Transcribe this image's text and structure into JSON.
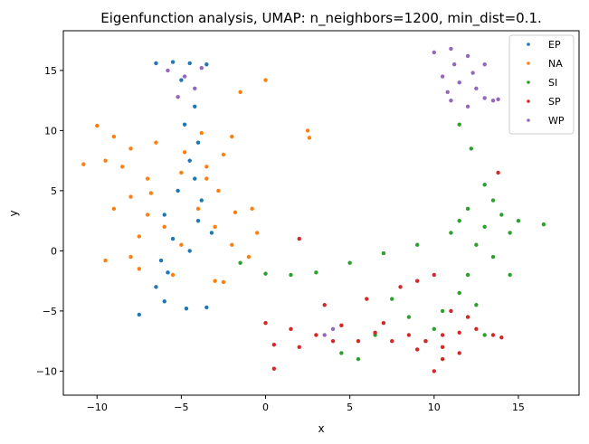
{
  "chart_data": {
    "type": "scatter",
    "title": "Eigenfunction analysis, UMAP: n_neighbors=1200, min_dist=0.1.",
    "xlabel": "x",
    "ylabel": "y",
    "xlim": [
      -12,
      18.6
    ],
    "ylim": [
      -12,
      18.3
    ],
    "xticks": [
      -10,
      -5,
      0,
      5,
      10,
      15
    ],
    "yticks": [
      -10,
      -5,
      0,
      5,
      10,
      15
    ],
    "tick_labels": {
      "x": [
        "−10",
        "−5",
        "0",
        "5",
        "10",
        "15"
      ],
      "y": [
        "−10",
        "−5",
        "0",
        "5",
        "10",
        "15"
      ]
    },
    "grid": false,
    "legend_position": "top-right",
    "series": [
      {
        "name": "EP",
        "color": "#1f77b4",
        "points": [
          [
            -6.5,
            15.6
          ],
          [
            -5.5,
            15.7
          ],
          [
            -4.5,
            15.6
          ],
          [
            -3.5,
            15.5
          ],
          [
            -5.0,
            14.2
          ],
          [
            -4.2,
            12.0
          ],
          [
            -4.8,
            10.5
          ],
          [
            -4.0,
            9.0
          ],
          [
            -4.5,
            7.5
          ],
          [
            -4.2,
            6.0
          ],
          [
            -5.2,
            5.0
          ],
          [
            -3.8,
            4.2
          ],
          [
            -6.0,
            3.0
          ],
          [
            -4.0,
            2.5
          ],
          [
            -5.5,
            1.0
          ],
          [
            -4.5,
            0.0
          ],
          [
            -6.2,
            -0.8
          ],
          [
            -5.8,
            -1.8
          ],
          [
            -6.5,
            -3.0
          ],
          [
            -6.0,
            -4.2
          ],
          [
            -7.5,
            -5.3
          ],
          [
            -4.7,
            -4.8
          ],
          [
            -3.5,
            -4.7
          ],
          [
            -3.2,
            1.5
          ]
        ]
      },
      {
        "name": "NA",
        "color": "#ff7f0e",
        "points": [
          [
            -10.0,
            10.4
          ],
          [
            -9.0,
            9.5
          ],
          [
            -8.0,
            8.5
          ],
          [
            -10.8,
            7.2
          ],
          [
            -9.5,
            7.5
          ],
          [
            -8.5,
            7.0
          ],
          [
            -7.0,
            6.0
          ],
          [
            -5.0,
            6.5
          ],
          [
            -3.5,
            7.0
          ],
          [
            -2.5,
            8.0
          ],
          [
            -2.0,
            9.5
          ],
          [
            -1.5,
            13.2
          ],
          [
            0.0,
            14.2
          ],
          [
            2.5,
            10.0
          ],
          [
            2.6,
            9.4
          ],
          [
            -9.0,
            3.5
          ],
          [
            -8.0,
            4.5
          ],
          [
            -7.0,
            3.0
          ],
          [
            -6.0,
            2.0
          ],
          [
            -4.0,
            3.5
          ],
          [
            -3.0,
            2.0
          ],
          [
            -2.0,
            0.5
          ],
          [
            -1.0,
            -0.5
          ],
          [
            -0.5,
            1.5
          ],
          [
            -8.0,
            -0.5
          ],
          [
            -7.5,
            -1.5
          ],
          [
            -5.5,
            -2.0
          ],
          [
            -3.0,
            -2.5
          ],
          [
            -2.5,
            -2.6
          ],
          [
            -5.0,
            0.5
          ],
          [
            -3.5,
            6.0
          ],
          [
            -2.8,
            5.0
          ],
          [
            -1.8,
            3.2
          ],
          [
            -0.8,
            3.5
          ],
          [
            -7.5,
            1.2
          ],
          [
            -9.5,
            -0.8
          ],
          [
            -6.8,
            4.8
          ],
          [
            -4.8,
            8.2
          ],
          [
            -3.8,
            9.8
          ],
          [
            -6.5,
            9.0
          ]
        ]
      },
      {
        "name": "SI",
        "color": "#2ca02c",
        "points": [
          [
            11.5,
            10.5
          ],
          [
            12.2,
            8.5
          ],
          [
            13.0,
            5.5
          ],
          [
            12.0,
            3.5
          ],
          [
            13.5,
            4.2
          ],
          [
            14.0,
            3.0
          ],
          [
            15.0,
            2.5
          ],
          [
            16.5,
            2.2
          ],
          [
            14.5,
            1.5
          ],
          [
            13.0,
            2.0
          ],
          [
            11.5,
            2.5
          ],
          [
            12.5,
            0.5
          ],
          [
            13.5,
            -0.5
          ],
          [
            12.0,
            -2.0
          ],
          [
            11.5,
            -3.5
          ],
          [
            12.5,
            -4.5
          ],
          [
            10.5,
            -5.0
          ],
          [
            10.0,
            -6.5
          ],
          [
            9.5,
            -7.5
          ],
          [
            8.5,
            -5.5
          ],
          [
            7.5,
            -4.0
          ],
          [
            6.5,
            -7.0
          ],
          [
            5.5,
            -9.0
          ],
          [
            4.5,
            -8.5
          ],
          [
            -1.5,
            -1.0
          ],
          [
            0.0,
            -1.9
          ],
          [
            1.5,
            -2.0
          ],
          [
            3.0,
            -1.8
          ],
          [
            5.0,
            -1.0
          ],
          [
            7.0,
            -0.2
          ],
          [
            9.0,
            0.5
          ],
          [
            11.0,
            1.5
          ],
          [
            13.0,
            -7.0
          ],
          [
            14.5,
            -2.0
          ]
        ]
      },
      {
        "name": "SP",
        "color": "#d62728",
        "points": [
          [
            0.0,
            -6.0
          ],
          [
            1.5,
            -6.5
          ],
          [
            3.0,
            -7.0
          ],
          [
            4.5,
            -6.2
          ],
          [
            5.5,
            -7.5
          ],
          [
            6.5,
            -6.8
          ],
          [
            7.5,
            -7.5
          ],
          [
            8.5,
            -7.0
          ],
          [
            9.5,
            -7.5
          ],
          [
            10.5,
            -7.0
          ],
          [
            11.5,
            -6.8
          ],
          [
            12.5,
            -6.5
          ],
          [
            13.5,
            -7.0
          ],
          [
            14.0,
            -7.2
          ],
          [
            10.0,
            -10.0
          ],
          [
            10.5,
            -9.0
          ],
          [
            11.5,
            -8.5
          ],
          [
            12.0,
            -5.5
          ],
          [
            11.0,
            -5.0
          ],
          [
            3.5,
            -4.5
          ],
          [
            6.0,
            -4.0
          ],
          [
            8.0,
            -3.0
          ],
          [
            9.0,
            -2.5
          ],
          [
            0.5,
            -9.8
          ],
          [
            2.0,
            -8.0
          ],
          [
            4.0,
            -7.5
          ],
          [
            13.8,
            6.5
          ],
          [
            10.5,
            -8.0
          ],
          [
            9.0,
            -8.2
          ],
          [
            7.0,
            -6.0
          ],
          [
            0.5,
            -7.8
          ],
          [
            2.0,
            1.0
          ],
          [
            10.0,
            -2.0
          ]
        ]
      },
      {
        "name": "WP",
        "color": "#9467bd",
        "points": [
          [
            10.0,
            16.5
          ],
          [
            11.0,
            16.8
          ],
          [
            12.0,
            16.2
          ],
          [
            13.0,
            15.5
          ],
          [
            10.5,
            14.5
          ],
          [
            11.5,
            14.0
          ],
          [
            12.5,
            13.5
          ],
          [
            13.5,
            12.5
          ],
          [
            11.0,
            12.5
          ],
          [
            12.0,
            12.0
          ],
          [
            13.0,
            12.7
          ],
          [
            11.2,
            15.5
          ],
          [
            12.3,
            14.8
          ],
          [
            10.8,
            13.2
          ],
          [
            13.8,
            12.6
          ],
          [
            -5.8,
            15.0
          ],
          [
            -4.8,
            14.5
          ],
          [
            -3.8,
            15.2
          ],
          [
            -4.2,
            13.5
          ],
          [
            -5.2,
            12.8
          ],
          [
            4.0,
            -6.5
          ],
          [
            3.5,
            -7.0
          ]
        ]
      }
    ]
  }
}
